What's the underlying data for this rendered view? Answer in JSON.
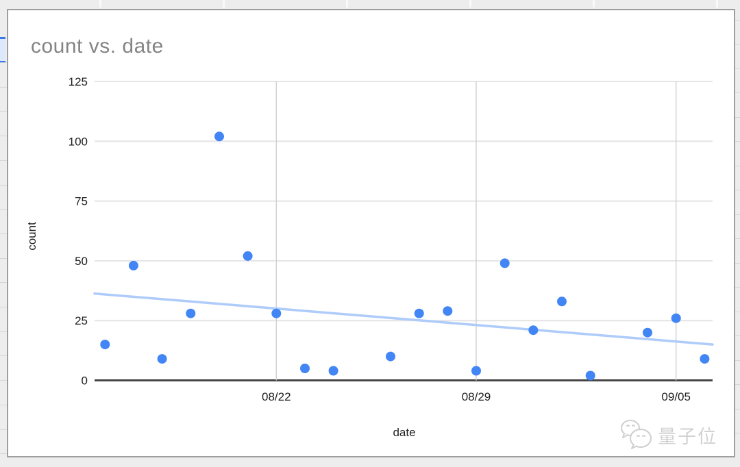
{
  "chart_data": {
    "type": "scatter",
    "title": "count vs. date",
    "xlabel": "date",
    "ylabel": "count",
    "x_axis_type": "date",
    "x_tick_labels": [
      "08/22",
      "08/29",
      "09/05"
    ],
    "y_ticks": [
      0,
      25,
      50,
      75,
      100,
      125
    ],
    "ylim": [
      0,
      125
    ],
    "grid": true,
    "legend": "none",
    "points": [
      {
        "date": "08/16",
        "count": 15
      },
      {
        "date": "08/17",
        "count": 48
      },
      {
        "date": "08/18",
        "count": 9
      },
      {
        "date": "08/19",
        "count": 28
      },
      {
        "date": "08/20",
        "count": 102
      },
      {
        "date": "08/21",
        "count": 52
      },
      {
        "date": "08/22",
        "count": 28
      },
      {
        "date": "08/23",
        "count": 5
      },
      {
        "date": "08/24",
        "count": 4
      },
      {
        "date": "08/26",
        "count": 10
      },
      {
        "date": "08/27",
        "count": 28
      },
      {
        "date": "08/28",
        "count": 29
      },
      {
        "date": "08/29",
        "count": 4
      },
      {
        "date": "08/30",
        "count": 49
      },
      {
        "date": "08/31",
        "count": 21
      },
      {
        "date": "09/01",
        "count": 33
      },
      {
        "date": "09/02",
        "count": 2
      },
      {
        "date": "09/04",
        "count": 20
      },
      {
        "date": "09/05",
        "count": 26
      },
      {
        "date": "09/06",
        "count": 9
      }
    ],
    "trendline": {
      "start_value": 36.3,
      "end_value": 15
    },
    "colors": {
      "point": "#4285f4",
      "trendline": "#aecbfa",
      "title_text": "#848484",
      "tick_text": "#1f1f1f",
      "gridline_h": "#e4e4e4",
      "gridline_v": "#d2d2d2",
      "baseline": "#454545"
    }
  },
  "watermark": {
    "text": "量子位",
    "icon": "chat-bubbles-logo"
  }
}
